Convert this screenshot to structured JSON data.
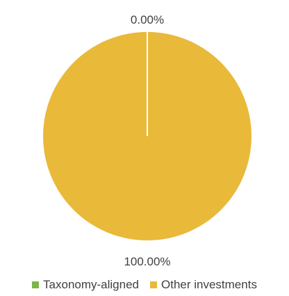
{
  "chart_data": {
    "type": "pie",
    "slices": [
      {
        "label": "Taxonomy-aligned",
        "value": 0.0,
        "display": "0.00%",
        "color": "#7ab648"
      },
      {
        "label": "Other investments",
        "value": 100.0,
        "display": "100.00%",
        "color": "#e9b93a"
      }
    ],
    "legend_position": "bottom",
    "divider_color": "#ffffff"
  }
}
